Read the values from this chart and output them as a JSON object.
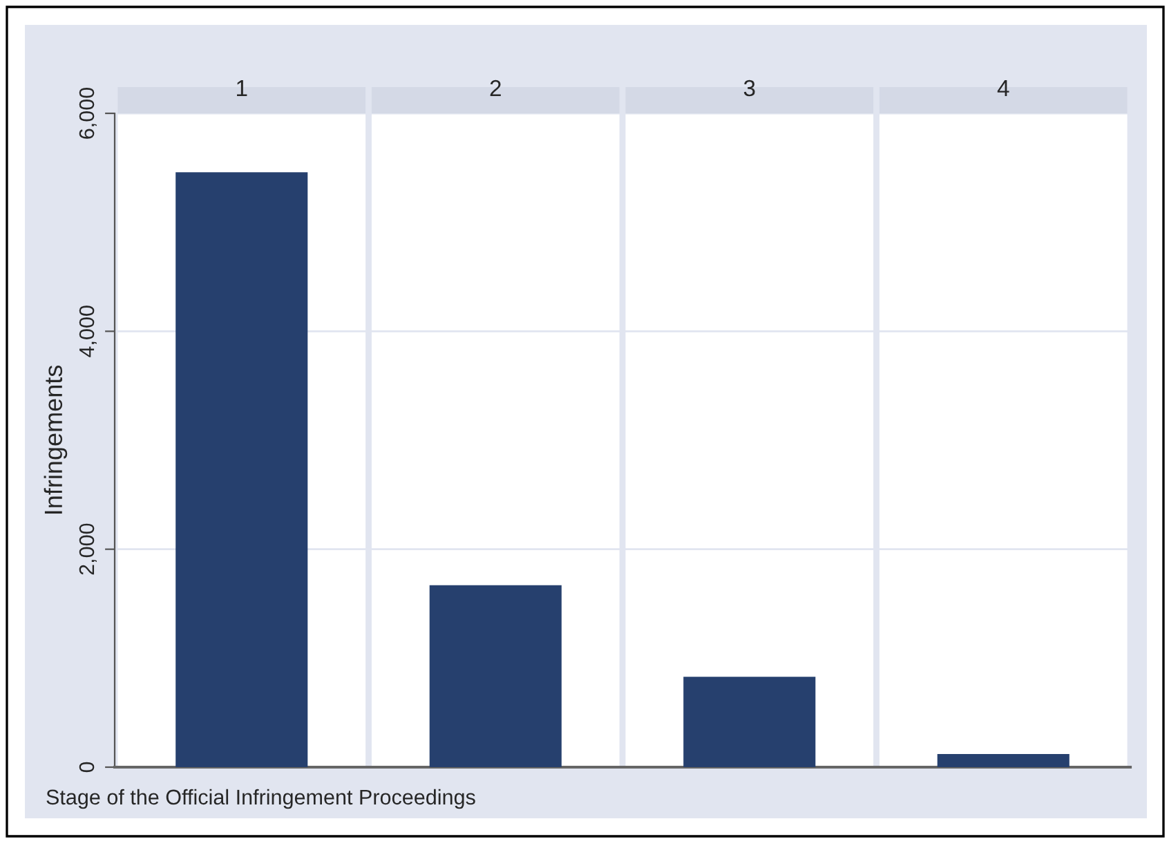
{
  "chart_data": {
    "type": "bar",
    "categories": [
      "1",
      "2",
      "3",
      "4"
    ],
    "values": [
      5460,
      1670,
      830,
      120
    ],
    "color": "#26406e",
    "ylim": [
      0,
      6000
    ],
    "yticks": [
      0,
      {
        "value": 2000,
        "label": "2,000"
      },
      {
        "value": 4000,
        "label": "4,000"
      },
      {
        "value": 6000,
        "label": "6,000"
      }
    ],
    "grid": "y",
    "ylabel": "Infringements",
    "xlabel": "Stage of the Official Infringement Proceedings"
  }
}
